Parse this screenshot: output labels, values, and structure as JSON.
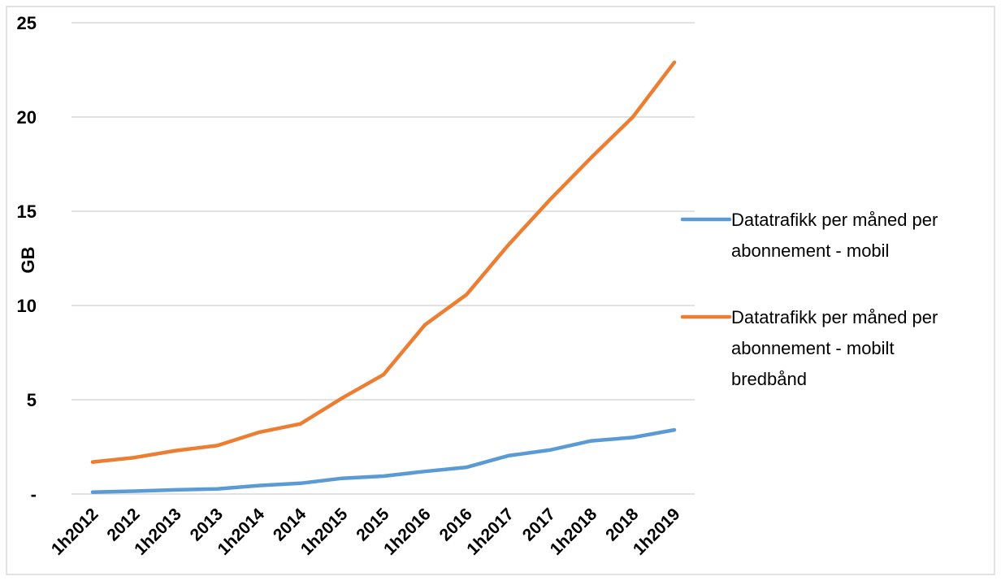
{
  "chart_data": {
    "type": "line",
    "title": "",
    "xlabel": "",
    "ylabel": "GB",
    "ylim": [
      0,
      25
    ],
    "yticks": [
      {
        "value": 0,
        "label": "-"
      },
      {
        "value": 5,
        "label": "5"
      },
      {
        "value": 10,
        "label": "10"
      },
      {
        "value": 15,
        "label": "15"
      },
      {
        "value": 20,
        "label": "20"
      },
      {
        "value": 25,
        "label": "25"
      }
    ],
    "grid": true,
    "legend_position": "right",
    "categories": [
      "1h2012",
      "2012",
      "1h2013",
      "2013",
      "1h2014",
      "2014",
      "1h2015",
      "2015",
      "1h2016",
      "2016",
      "1h2017",
      "2017",
      "1h2018",
      "2018",
      "1h2019"
    ],
    "series": [
      {
        "name": "Datatrafikk per måned per abonnement - mobil",
        "legend_lines": [
          "Datatrafikk per måned per",
          "abonnement - mobil"
        ],
        "color": "#5b9bd5",
        "values": [
          0.1,
          0.15,
          0.22,
          0.27,
          0.45,
          0.57,
          0.83,
          0.95,
          1.2,
          1.42,
          2.03,
          2.33,
          2.82,
          3.0,
          3.4
        ]
      },
      {
        "name": "Datatrafikk per måned per abonnement - mobilt bredbånd",
        "legend_lines": [
          "Datatrafikk per måned per",
          "abonnement - mobilt",
          "bredbånd"
        ],
        "color": "#ed7d31",
        "values": [
          1.7,
          1.93,
          2.3,
          2.57,
          3.27,
          3.72,
          5.08,
          6.33,
          8.98,
          10.58,
          13.2,
          15.6,
          17.85,
          20.0,
          22.9
        ]
      }
    ]
  }
}
